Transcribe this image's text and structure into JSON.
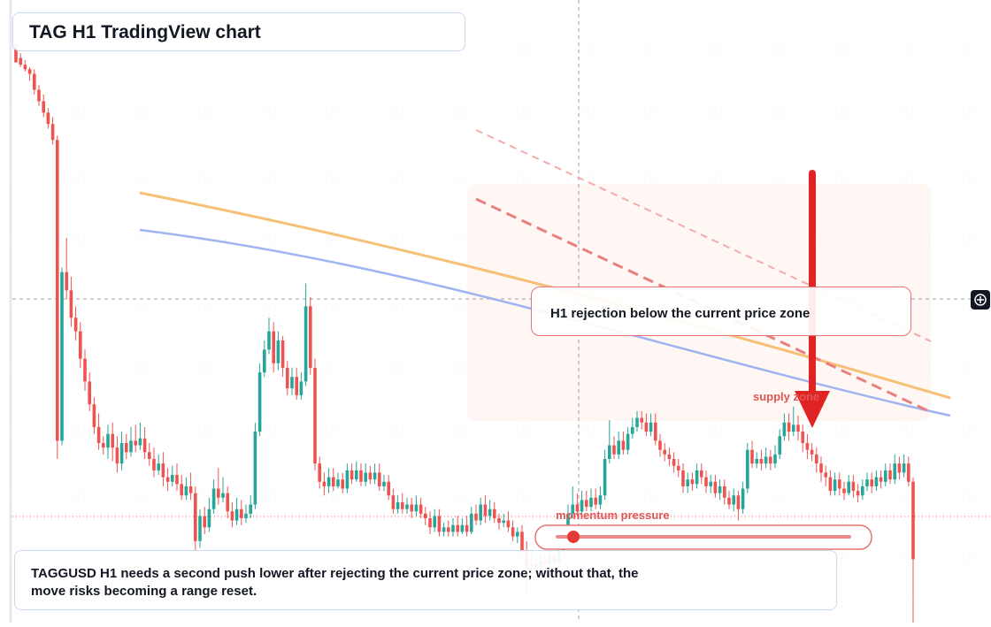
{
  "title": "TAG H1 TradingView chart",
  "callout": "H1 rejection below the current price zone",
  "note": "TAGGUSD H1 needs a second push lower after rejecting the current price zone; without that, the move risks becoming a range reset.",
  "labels": {
    "supply": "supply zone",
    "momentum": "momentum pressure"
  },
  "colors": {
    "up": "#26a69a",
    "down": "#ef5350",
    "ma_orange": "#f6b55a",
    "ma_blue": "#8fa9ee",
    "arrow": "#e02424",
    "label_red": "#e25555",
    "zone": "#fdf3ee"
  },
  "icons": {
    "crosshair": "crosshair-plus-icon"
  },
  "chart_data": {
    "type": "candlestick",
    "symbol": "TAGGUSD",
    "timeframe": "H1",
    "momentum_level": 0.06,
    "candles": [
      [
        40.0,
        39.2,
        39.5,
        39.4
      ],
      [
        39.4,
        39.1,
        39.6,
        39.0
      ],
      [
        39.1,
        38.9,
        39.3,
        38.8
      ],
      [
        38.9,
        38.7,
        39.0,
        38.4
      ],
      [
        38.7,
        38.0,
        38.9,
        37.8
      ],
      [
        38.0,
        37.5,
        38.2,
        37.3
      ],
      [
        37.5,
        37.0,
        37.8,
        36.8
      ],
      [
        37.0,
        36.5,
        37.2,
        36.3
      ],
      [
        36.5,
        35.8,
        36.8,
        35.6
      ],
      [
        35.8,
        22.6,
        36.0,
        21.8
      ],
      [
        22.6,
        30.0,
        30.2,
        22.4
      ],
      [
        30.0,
        29.2,
        31.5,
        28.8
      ],
      [
        29.2,
        28.0,
        29.8,
        27.6
      ],
      [
        28.0,
        27.4,
        28.5,
        27.0
      ],
      [
        27.4,
        26.2,
        27.8,
        25.8
      ],
      [
        26.2,
        25.2,
        26.6,
        24.8
      ],
      [
        25.2,
        24.2,
        25.6,
        23.9
      ],
      [
        24.2,
        23.2,
        24.5,
        22.9
      ],
      [
        23.2,
        22.5,
        23.8,
        22.2
      ],
      [
        22.5,
        22.3,
        22.8,
        22.0
      ],
      [
        22.3,
        22.9,
        23.3,
        21.8
      ],
      [
        22.9,
        22.3,
        23.4,
        21.7
      ],
      [
        22.3,
        21.6,
        22.8,
        21.2
      ],
      [
        21.6,
        22.5,
        23.0,
        21.3
      ],
      [
        22.5,
        22.1,
        22.9,
        21.8
      ],
      [
        22.1,
        22.6,
        23.2,
        21.9
      ],
      [
        22.6,
        22.4,
        23.3,
        22.1
      ],
      [
        22.4,
        22.7,
        23.4,
        22.2
      ],
      [
        22.7,
        22.1,
        23.2,
        21.8
      ],
      [
        22.1,
        21.8,
        22.5,
        21.5
      ],
      [
        21.8,
        21.3,
        22.3,
        21.0
      ],
      [
        21.3,
        21.6,
        22.0,
        21.1
      ],
      [
        21.6,
        21.0,
        22.1,
        20.6
      ],
      [
        21.0,
        20.8,
        21.4,
        20.4
      ],
      [
        20.8,
        21.1,
        21.5,
        20.6
      ],
      [
        21.1,
        20.7,
        21.6,
        20.4
      ],
      [
        20.7,
        20.2,
        21.1,
        20.0
      ],
      [
        20.2,
        20.6,
        21.0,
        20.0
      ],
      [
        20.6,
        20.3,
        21.2,
        20.0
      ],
      [
        20.3,
        18.2,
        20.6,
        17.6
      ],
      [
        18.2,
        19.3,
        19.6,
        17.9
      ],
      [
        19.3,
        18.8,
        19.7,
        18.5
      ],
      [
        18.8,
        19.6,
        20.1,
        18.6
      ],
      [
        19.6,
        20.5,
        20.9,
        19.4
      ],
      [
        20.5,
        20.1,
        21.4,
        19.8
      ],
      [
        20.1,
        20.3,
        21.0,
        19.9
      ],
      [
        20.3,
        19.5,
        20.6,
        19.2
      ],
      [
        19.5,
        19.1,
        19.9,
        18.8
      ],
      [
        19.1,
        19.6,
        20.1,
        18.9
      ],
      [
        19.6,
        19.2,
        20.0,
        18.9
      ],
      [
        19.2,
        19.4,
        19.8,
        19.0
      ],
      [
        19.4,
        19.8,
        20.2,
        19.2
      ],
      [
        19.8,
        23.0,
        23.4,
        19.6
      ],
      [
        23.0,
        25.6,
        26.0,
        22.8
      ],
      [
        25.6,
        26.6,
        27.0,
        25.4
      ],
      [
        26.6,
        27.4,
        28.0,
        26.4
      ],
      [
        27.4,
        26.0,
        27.8,
        25.6
      ],
      [
        26.0,
        27.0,
        27.4,
        25.7
      ],
      [
        27.0,
        25.8,
        27.2,
        25.4
      ],
      [
        25.8,
        24.9,
        26.1,
        24.6
      ],
      [
        24.9,
        25.4,
        25.8,
        24.6
      ],
      [
        25.4,
        24.6,
        25.8,
        24.4
      ],
      [
        24.6,
        25.2,
        25.6,
        24.4
      ],
      [
        25.2,
        28.5,
        29.5,
        25.0
      ],
      [
        28.5,
        25.8,
        28.9,
        25.5
      ],
      [
        25.8,
        21.6,
        26.2,
        21.3
      ],
      [
        21.6,
        20.8,
        21.9,
        20.5
      ],
      [
        20.8,
        20.6,
        21.2,
        20.2
      ],
      [
        20.6,
        21.0,
        21.4,
        20.3
      ],
      [
        21.0,
        20.6,
        21.4,
        20.4
      ],
      [
        20.6,
        20.9,
        21.2,
        20.5
      ],
      [
        20.9,
        20.5,
        21.2,
        20.3
      ],
      [
        20.5,
        21.3,
        21.6,
        20.3
      ],
      [
        21.3,
        20.9,
        21.6,
        20.7
      ],
      [
        20.9,
        21.3,
        21.7,
        20.8
      ],
      [
        21.3,
        20.8,
        21.6,
        20.6
      ],
      [
        20.8,
        21.2,
        21.6,
        20.6
      ],
      [
        21.2,
        20.9,
        21.5,
        20.7
      ],
      [
        20.9,
        21.2,
        21.6,
        20.7
      ],
      [
        21.2,
        20.6,
        21.6,
        20.4
      ],
      [
        20.6,
        20.8,
        21.1,
        20.4
      ],
      [
        20.8,
        20.2,
        21.1,
        20.0
      ],
      [
        20.2,
        19.6,
        20.5,
        19.4
      ],
      [
        19.6,
        19.9,
        20.2,
        19.4
      ],
      [
        19.9,
        19.6,
        20.3,
        19.4
      ],
      [
        19.6,
        19.8,
        20.1,
        19.4
      ],
      [
        19.8,
        19.5,
        20.1,
        19.2
      ],
      [
        19.5,
        19.8,
        20.2,
        19.3
      ],
      [
        19.8,
        19.4,
        20.1,
        19.2
      ],
      [
        19.4,
        19.2,
        19.7,
        18.9
      ],
      [
        19.2,
        18.8,
        19.5,
        18.5
      ],
      [
        18.8,
        19.3,
        19.6,
        18.6
      ],
      [
        19.3,
        18.6,
        19.6,
        18.4
      ],
      [
        18.6,
        18.8,
        19.0,
        18.4
      ],
      [
        18.8,
        18.6,
        19.1,
        18.4
      ],
      [
        18.6,
        18.9,
        19.2,
        18.4
      ],
      [
        18.9,
        18.6,
        19.3,
        18.4
      ],
      [
        18.6,
        18.9,
        19.2,
        18.5
      ],
      [
        18.9,
        18.6,
        19.3,
        18.4
      ],
      [
        18.6,
        19.4,
        19.7,
        18.5
      ],
      [
        19.4,
        19.1,
        19.8,
        18.9
      ],
      [
        19.1,
        19.8,
        20.1,
        18.9
      ],
      [
        19.8,
        19.3,
        20.2,
        19.0
      ],
      [
        19.3,
        19.6,
        20.0,
        19.1
      ],
      [
        19.6,
        19.2,
        19.9,
        19.0
      ],
      [
        19.2,
        19.0,
        19.4,
        18.7
      ],
      [
        19.0,
        19.1,
        19.4,
        18.8
      ],
      [
        19.1,
        18.8,
        19.5,
        18.6
      ],
      [
        18.8,
        18.4,
        19.1,
        18.2
      ],
      [
        18.4,
        18.6,
        18.8,
        18.1
      ],
      [
        18.6,
        17.8,
        18.9,
        17.6
      ],
      [
        17.8,
        17.1,
        18.2,
        15.8
      ],
      [
        17.1,
        17.2,
        17.6,
        16.8
      ],
      [
        17.2,
        17.1,
        17.4,
        16.9
      ],
      [
        17.1,
        17.3,
        17.6,
        16.8
      ],
      [
        17.3,
        17.2,
        17.6,
        17.0
      ],
      [
        17.2,
        17.5,
        17.8,
        17.0
      ],
      [
        17.5,
        17.3,
        17.7,
        17.1
      ],
      [
        17.3,
        17.8,
        18.1,
        17.2
      ],
      [
        17.8,
        18.4,
        18.8,
        17.6
      ],
      [
        18.4,
        19.4,
        19.8,
        18.2
      ],
      [
        19.4,
        19.8,
        20.6,
        19.2
      ],
      [
        19.8,
        19.5,
        20.3,
        19.3
      ],
      [
        19.5,
        20.0,
        20.4,
        19.3
      ],
      [
        20.0,
        19.7,
        20.4,
        19.5
      ],
      [
        19.7,
        20.1,
        20.5,
        19.5
      ],
      [
        20.1,
        19.8,
        20.5,
        19.6
      ],
      [
        19.8,
        20.2,
        20.6,
        19.6
      ],
      [
        20.2,
        21.8,
        22.2,
        20.0
      ],
      [
        21.8,
        22.4,
        23.5,
        21.6
      ],
      [
        22.4,
        22.0,
        22.8,
        21.8
      ],
      [
        22.0,
        22.6,
        23.0,
        21.8
      ],
      [
        22.6,
        22.2,
        23.0,
        22.0
      ],
      [
        22.2,
        22.9,
        23.2,
        22.0
      ],
      [
        22.9,
        23.2,
        23.6,
        22.7
      ],
      [
        23.2,
        23.6,
        23.9,
        23.0
      ],
      [
        23.6,
        23.4,
        23.9,
        23.1
      ],
      [
        23.4,
        23.0,
        23.8,
        22.8
      ],
      [
        23.0,
        23.4,
        23.8,
        22.8
      ],
      [
        23.4,
        22.6,
        23.8,
        22.4
      ],
      [
        22.6,
        22.2,
        22.9,
        21.9
      ],
      [
        22.2,
        22.0,
        22.5,
        21.7
      ],
      [
        22.0,
        21.8,
        22.3,
        21.5
      ],
      [
        21.8,
        21.5,
        22.1,
        21.2
      ],
      [
        21.5,
        21.3,
        21.8,
        21.0
      ],
      [
        21.3,
        20.6,
        21.6,
        20.3
      ],
      [
        20.6,
        20.9,
        21.2,
        20.3
      ],
      [
        20.9,
        20.7,
        21.2,
        20.4
      ],
      [
        20.7,
        21.3,
        21.6,
        20.5
      ],
      [
        21.3,
        21.0,
        21.6,
        20.7
      ],
      [
        21.0,
        20.6,
        21.3,
        20.3
      ],
      [
        20.6,
        20.8,
        21.1,
        20.3
      ],
      [
        20.8,
        20.3,
        21.1,
        20.1
      ],
      [
        20.3,
        20.6,
        20.9,
        20.0
      ],
      [
        20.6,
        20.1,
        20.9,
        19.8
      ],
      [
        20.1,
        19.8,
        20.4,
        19.6
      ],
      [
        19.8,
        20.2,
        20.5,
        19.5
      ],
      [
        20.2,
        19.6,
        20.4,
        19.1
      ],
      [
        19.6,
        20.5,
        20.8,
        19.4
      ],
      [
        20.5,
        22.2,
        22.5,
        20.3
      ],
      [
        22.2,
        21.6,
        22.6,
        21.4
      ],
      [
        21.6,
        21.8,
        22.1,
        21.4
      ],
      [
        21.8,
        21.6,
        22.2,
        21.3
      ],
      [
        21.6,
        21.9,
        22.3,
        21.4
      ],
      [
        21.9,
        21.6,
        22.2,
        21.3
      ],
      [
        21.6,
        22.0,
        22.4,
        21.4
      ],
      [
        22.0,
        22.8,
        23.1,
        21.8
      ],
      [
        22.8,
        23.4,
        23.8,
        22.6
      ],
      [
        23.4,
        23.0,
        23.8,
        22.6
      ],
      [
        23.0,
        23.3,
        24.1,
        22.8
      ],
      [
        23.3,
        23.0,
        23.7,
        22.6
      ],
      [
        23.0,
        22.5,
        23.3,
        22.1
      ],
      [
        22.5,
        22.2,
        22.9,
        21.8
      ],
      [
        22.2,
        22.0,
        22.5,
        21.7
      ],
      [
        22.0,
        21.6,
        22.3,
        21.2
      ],
      [
        21.6,
        21.2,
        21.9,
        20.8
      ],
      [
        21.2,
        21.0,
        21.5,
        20.6
      ],
      [
        21.0,
        20.4,
        21.3,
        20.2
      ],
      [
        20.4,
        20.9,
        21.2,
        20.2
      ],
      [
        20.9,
        20.5,
        21.2,
        20.2
      ],
      [
        20.5,
        20.3,
        20.8,
        20.0
      ],
      [
        20.3,
        20.8,
        21.1,
        20.2
      ],
      [
        20.8,
        20.4,
        21.1,
        20.1
      ],
      [
        20.4,
        20.2,
        20.7,
        19.9
      ],
      [
        20.2,
        20.6,
        20.9,
        20.0
      ],
      [
        20.6,
        20.9,
        21.2,
        20.4
      ],
      [
        20.9,
        20.6,
        21.2,
        20.3
      ],
      [
        20.6,
        21.0,
        21.3,
        20.4
      ],
      [
        21.0,
        20.8,
        21.3,
        20.5
      ],
      [
        20.8,
        21.3,
        21.6,
        20.6
      ],
      [
        21.3,
        20.9,
        21.6,
        20.7
      ],
      [
        20.9,
        21.6,
        22.0,
        20.7
      ],
      [
        21.6,
        21.2,
        21.9,
        20.9
      ],
      [
        21.2,
        21.6,
        22.0,
        21.0
      ],
      [
        21.6,
        20.8,
        21.9,
        20.6
      ],
      [
        20.8,
        17.4,
        21.0,
        14.0
      ]
    ]
  }
}
